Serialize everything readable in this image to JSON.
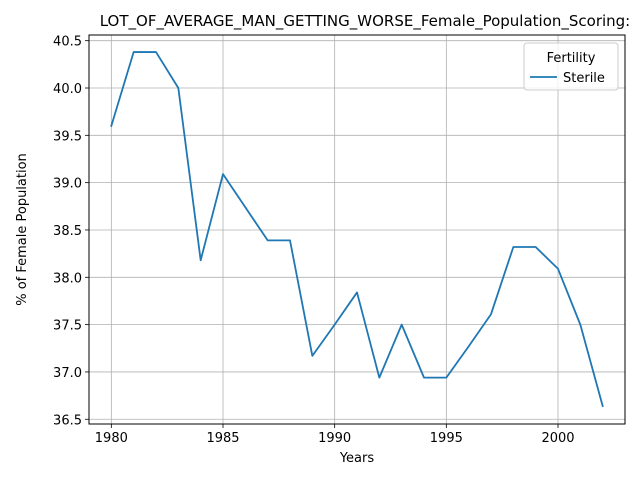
{
  "chart_data": {
    "type": "line",
    "title": "LOT_OF_AVERAGE_MAN_GETTING_WORSE_Female_Population_Scoring:",
    "xlabel": "Years",
    "ylabel": "% of Female Population",
    "xlim": [
      1979,
      2003
    ],
    "ylim": [
      36.45,
      40.56
    ],
    "xticks": [
      1980,
      1985,
      1990,
      1995,
      2000
    ],
    "yticks": [
      36.5,
      37.0,
      37.5,
      38.0,
      38.5,
      39.0,
      39.5,
      40.0,
      40.5
    ],
    "ytick_labels": [
      "36.5",
      "37.0",
      "37.5",
      "38.0",
      "38.5",
      "39.0",
      "39.5",
      "40.0",
      "40.5"
    ],
    "grid": true,
    "legend": {
      "title": "Fertility",
      "placement": "top-right"
    },
    "series": [
      {
        "name": "Sterile",
        "color": "#1f77b4",
        "x": [
          1980,
          1981,
          1982,
          1983,
          1984,
          1985,
          1986,
          1987,
          1988,
          1989,
          1990,
          1991,
          1992,
          1993,
          1994,
          1995,
          1996,
          1997,
          1998,
          1999,
          2000,
          2001,
          2002
        ],
        "values": [
          39.6,
          40.38,
          40.38,
          40.0,
          38.18,
          39.09,
          38.74,
          38.39,
          38.39,
          37.17,
          37.5,
          37.84,
          36.94,
          37.5,
          36.94,
          36.94,
          37.27,
          37.61,
          38.32,
          38.32,
          38.09,
          37.5,
          36.64
        ]
      }
    ]
  }
}
